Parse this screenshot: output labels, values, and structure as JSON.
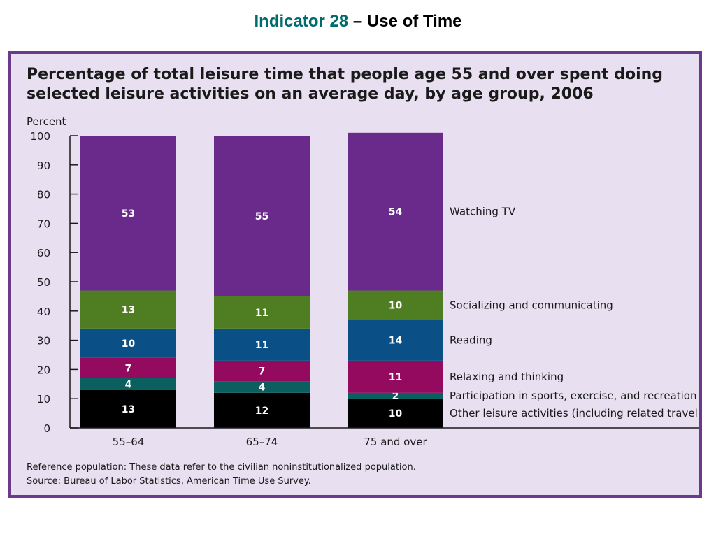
{
  "header": {
    "indicator": "Indicator 28",
    "rest": " – Use of Time"
  },
  "chart_data": {
    "type": "bar",
    "stacked": true,
    "title": "Percentage of total leisure time that people age 55 and over spent doing selected leisure activities on an average day, by age group, 2006",
    "ylabel": "Percent",
    "ylim": [
      0,
      100
    ],
    "yticks": [
      0,
      10,
      20,
      30,
      40,
      50,
      60,
      70,
      80,
      90,
      100
    ],
    "categories": [
      "55–64",
      "65–74",
      "75 and over"
    ],
    "series": [
      {
        "name": "Other leisure activities (including related travel)",
        "values": [
          13,
          12,
          10
        ],
        "color": "#000000"
      },
      {
        "name": "Participation in sports, exercise, and recreation",
        "values": [
          4,
          4,
          2
        ],
        "color": "#0c5f5f"
      },
      {
        "name": "Relaxing and thinking",
        "values": [
          7,
          7,
          11
        ],
        "color": "#940a5e"
      },
      {
        "name": "Reading",
        "values": [
          10,
          11,
          14
        ],
        "color": "#0a4f86"
      },
      {
        "name": "Socializing and communicating",
        "values": [
          13,
          11,
          10
        ],
        "color": "#4e7d22"
      },
      {
        "name": "Watching TV",
        "values": [
          53,
          55,
          54
        ],
        "color": "#6a2a8c"
      }
    ],
    "legend": "right-inline"
  },
  "footnotes": {
    "reference": "Reference population: These data refer to the civilian noninstitutionalized population.",
    "source": "Source:  Bureau of Labor Statistics, American Time Use Survey."
  }
}
